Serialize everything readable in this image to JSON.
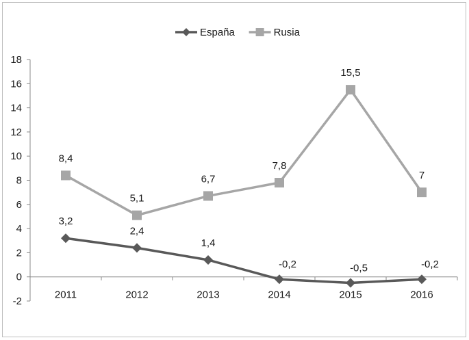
{
  "chart_data": {
    "type": "line",
    "categories": [
      "2011",
      "2012",
      "2013",
      "2014",
      "2015",
      "2016"
    ],
    "series": [
      {
        "name": "España",
        "color": "#595959",
        "marker": "diamond",
        "values": [
          3.2,
          2.4,
          1.4,
          -0.2,
          -0.5,
          -0.2
        ],
        "labels": [
          "3,2",
          "2,4",
          "1,4",
          "-0,2",
          "-0,5",
          "-0,2"
        ]
      },
      {
        "name": "Rusia",
        "color": "#a6a6a6",
        "marker": "square",
        "values": [
          8.4,
          5.1,
          6.7,
          7.8,
          15.5,
          7
        ],
        "labels": [
          "8,4",
          "5,1",
          "6,7",
          "7,8",
          "15,5",
          "7"
        ]
      }
    ],
    "ylim": [
      -2,
      18
    ],
    "yticks": [
      "-2",
      "0",
      "2",
      "4",
      "6",
      "8",
      "10",
      "12",
      "14",
      "16",
      "18"
    ],
    "grid": false,
    "legend_position": "top"
  }
}
